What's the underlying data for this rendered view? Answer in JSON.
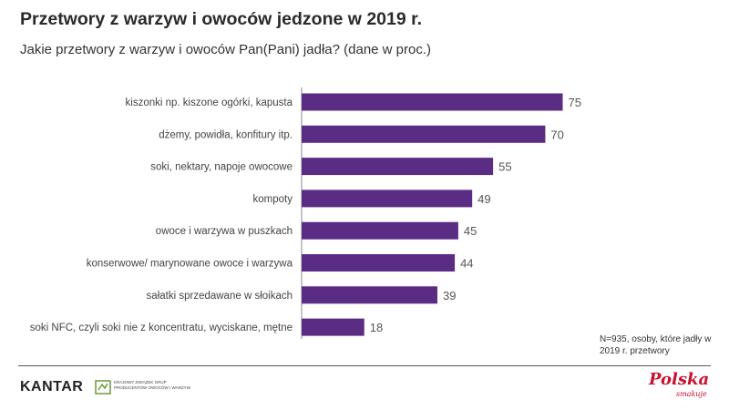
{
  "title": "Przetwory z warzyw i owoców jedzone w 2019 r.",
  "subtitle": "Jakie przetwory z warzyw i owoców Pan(Pani) jadła? (dane w proc.)",
  "note": "N=935, osoby, które jadły w 2019 r. przetwory",
  "footer": {
    "left_logo": "KANTAR",
    "partner_logo": "Krajowy Związek Grup Producentów Owoców i Warzyw",
    "right_logo": "Polska",
    "right_logo_sub": "smakuje"
  },
  "colors": {
    "bar": "#5b2c83",
    "value_label": "#555555"
  },
  "chart_data": {
    "type": "bar",
    "orientation": "horizontal",
    "categories": [
      "kiszonki np. kiszone ogórki, kapusta",
      "dżemy, powidła, konfitury itp.",
      "soki, nektary, napoje owocowe",
      "kompoty",
      "owoce i warzywa w puszkach",
      "konserwowe/ marynowane owoce i warzywa",
      "sałatki sprzedawane w słoikach",
      "soki NFC, czyli soki nie z koncentratu, wyciskane, mętne"
    ],
    "values": [
      75,
      70,
      55,
      49,
      45,
      44,
      39,
      18
    ],
    "xlim": [
      0,
      100
    ],
    "grid": false,
    "legend": "none"
  }
}
